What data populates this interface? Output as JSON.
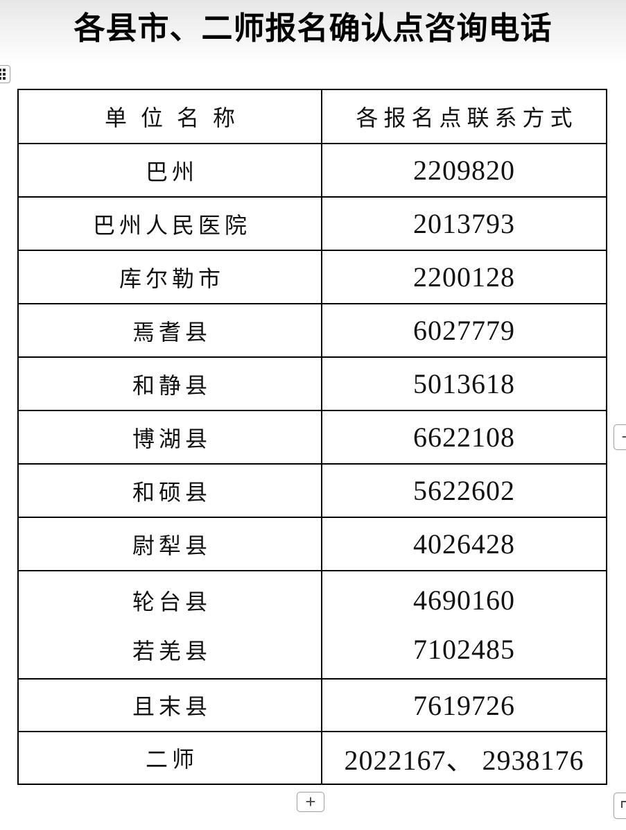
{
  "title": "各县市、二师报名确认点咨询电话",
  "table": {
    "headers": [
      "单位名称",
      "各报名点联系方式"
    ],
    "rows": [
      {
        "unit": "巴州",
        "phone": "2209820"
      },
      {
        "unit": "巴州人民医院",
        "phone": "2013793"
      },
      {
        "unit": "库尔勒市",
        "phone": "2200128"
      },
      {
        "unit": "焉耆县",
        "phone": "6027779"
      },
      {
        "unit": "和静县",
        "phone": "5013618"
      },
      {
        "unit": "博湖县",
        "phone": "6622108"
      },
      {
        "unit": "和硕县",
        "phone": "5622602"
      },
      {
        "unit": "尉犁县",
        "phone": "4026428"
      },
      {
        "unit": "轮台县",
        "phone": "4690160"
      },
      {
        "unit": "若羌县",
        "phone": "7102485"
      },
      {
        "unit": "且末县",
        "phone": "7619726"
      },
      {
        "unit": "二师",
        "phone": "2022167、 2938176"
      }
    ]
  },
  "controls": {
    "table_handle_icon": "table-drag-handle-dots",
    "add_row_button": "+",
    "add_column_button": "+",
    "resize_handle_icon": "table-resize-corner"
  },
  "colors": {
    "table_border": "#000000",
    "text": "#111111",
    "control_border": "#a3a3a3",
    "control_glyph": "#4a4a4a",
    "top_shading": "#e7e7e7"
  }
}
